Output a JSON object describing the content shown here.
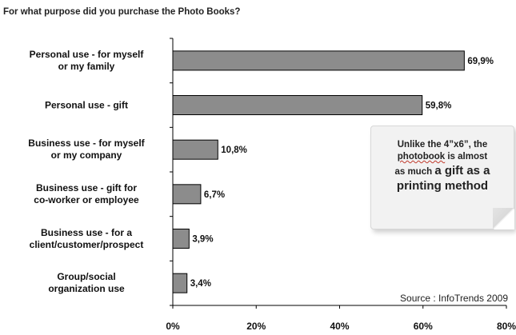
{
  "chart_data": {
    "type": "bar",
    "orientation": "horizontal",
    "title": "For what purpose did you purchase the Photo Books?",
    "categories": [
      [
        "Personal use - for myself",
        "or my family"
      ],
      [
        "Personal use - gift"
      ],
      [
        "Business use - for myself",
        "or my company"
      ],
      [
        "Business use - gift for",
        "co-worker or employee"
      ],
      [
        "Business use - for a",
        "client/customer/prospect"
      ],
      [
        "Group/social",
        "organization use"
      ]
    ],
    "values": [
      69.9,
      59.8,
      10.8,
      6.7,
      3.9,
      3.4
    ],
    "value_labels": [
      "69,9%",
      "59,8%",
      "10,8%",
      "6,7%",
      "3,9%",
      "3,4%"
    ],
    "xlim": [
      0,
      80
    ],
    "x_ticks": [
      0,
      20,
      40,
      60,
      80
    ],
    "x_tick_labels": [
      "0%",
      "20%",
      "40%",
      "60%",
      "80%"
    ],
    "bar_color": "#8c8c8c",
    "grid": false
  },
  "callout": {
    "line1": "Unlike the 4”x6”, the",
    "photobook": "photobook",
    "line2_rest": " is almost",
    "line3_small": "as much ",
    "line3_big": "a gift as a",
    "line4_big": "printing method"
  },
  "source": "Source : InfoTrends 2009"
}
